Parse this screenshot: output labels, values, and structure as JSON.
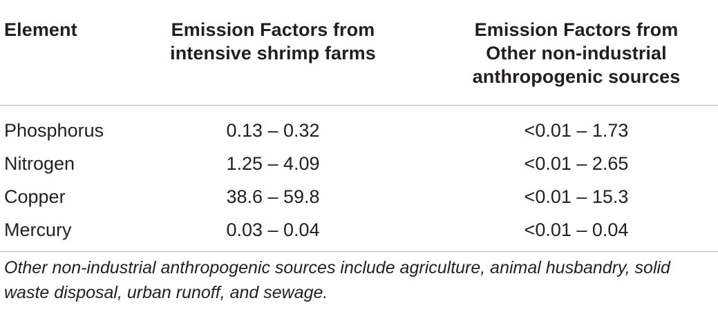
{
  "table": {
    "headers": [
      "Element",
      "Emission Factors from\nintensive shrimp farms",
      "Emission Factors from\nOther non-industrial\nanthropogenic sources"
    ],
    "rows": [
      {
        "element": "Phosphorus",
        "shrimp": "0.13 – 0.32",
        "other": "<0.01 – 1.73"
      },
      {
        "element": "Nitrogen",
        "shrimp": "1.25 – 4.09",
        "other": "<0.01 – 2.65"
      },
      {
        "element": "Copper",
        "shrimp": "38.6 – 59.8",
        "other": "<0.01 – 15.3"
      },
      {
        "element": "Mercury",
        "shrimp": "0.03 – 0.04",
        "other": "<0.01 – 0.04"
      }
    ],
    "footnote": "Other non-industrial anthropogenic sources include agriculture, animal husbandry, solid waste disposal, urban runoff, and sewage."
  }
}
